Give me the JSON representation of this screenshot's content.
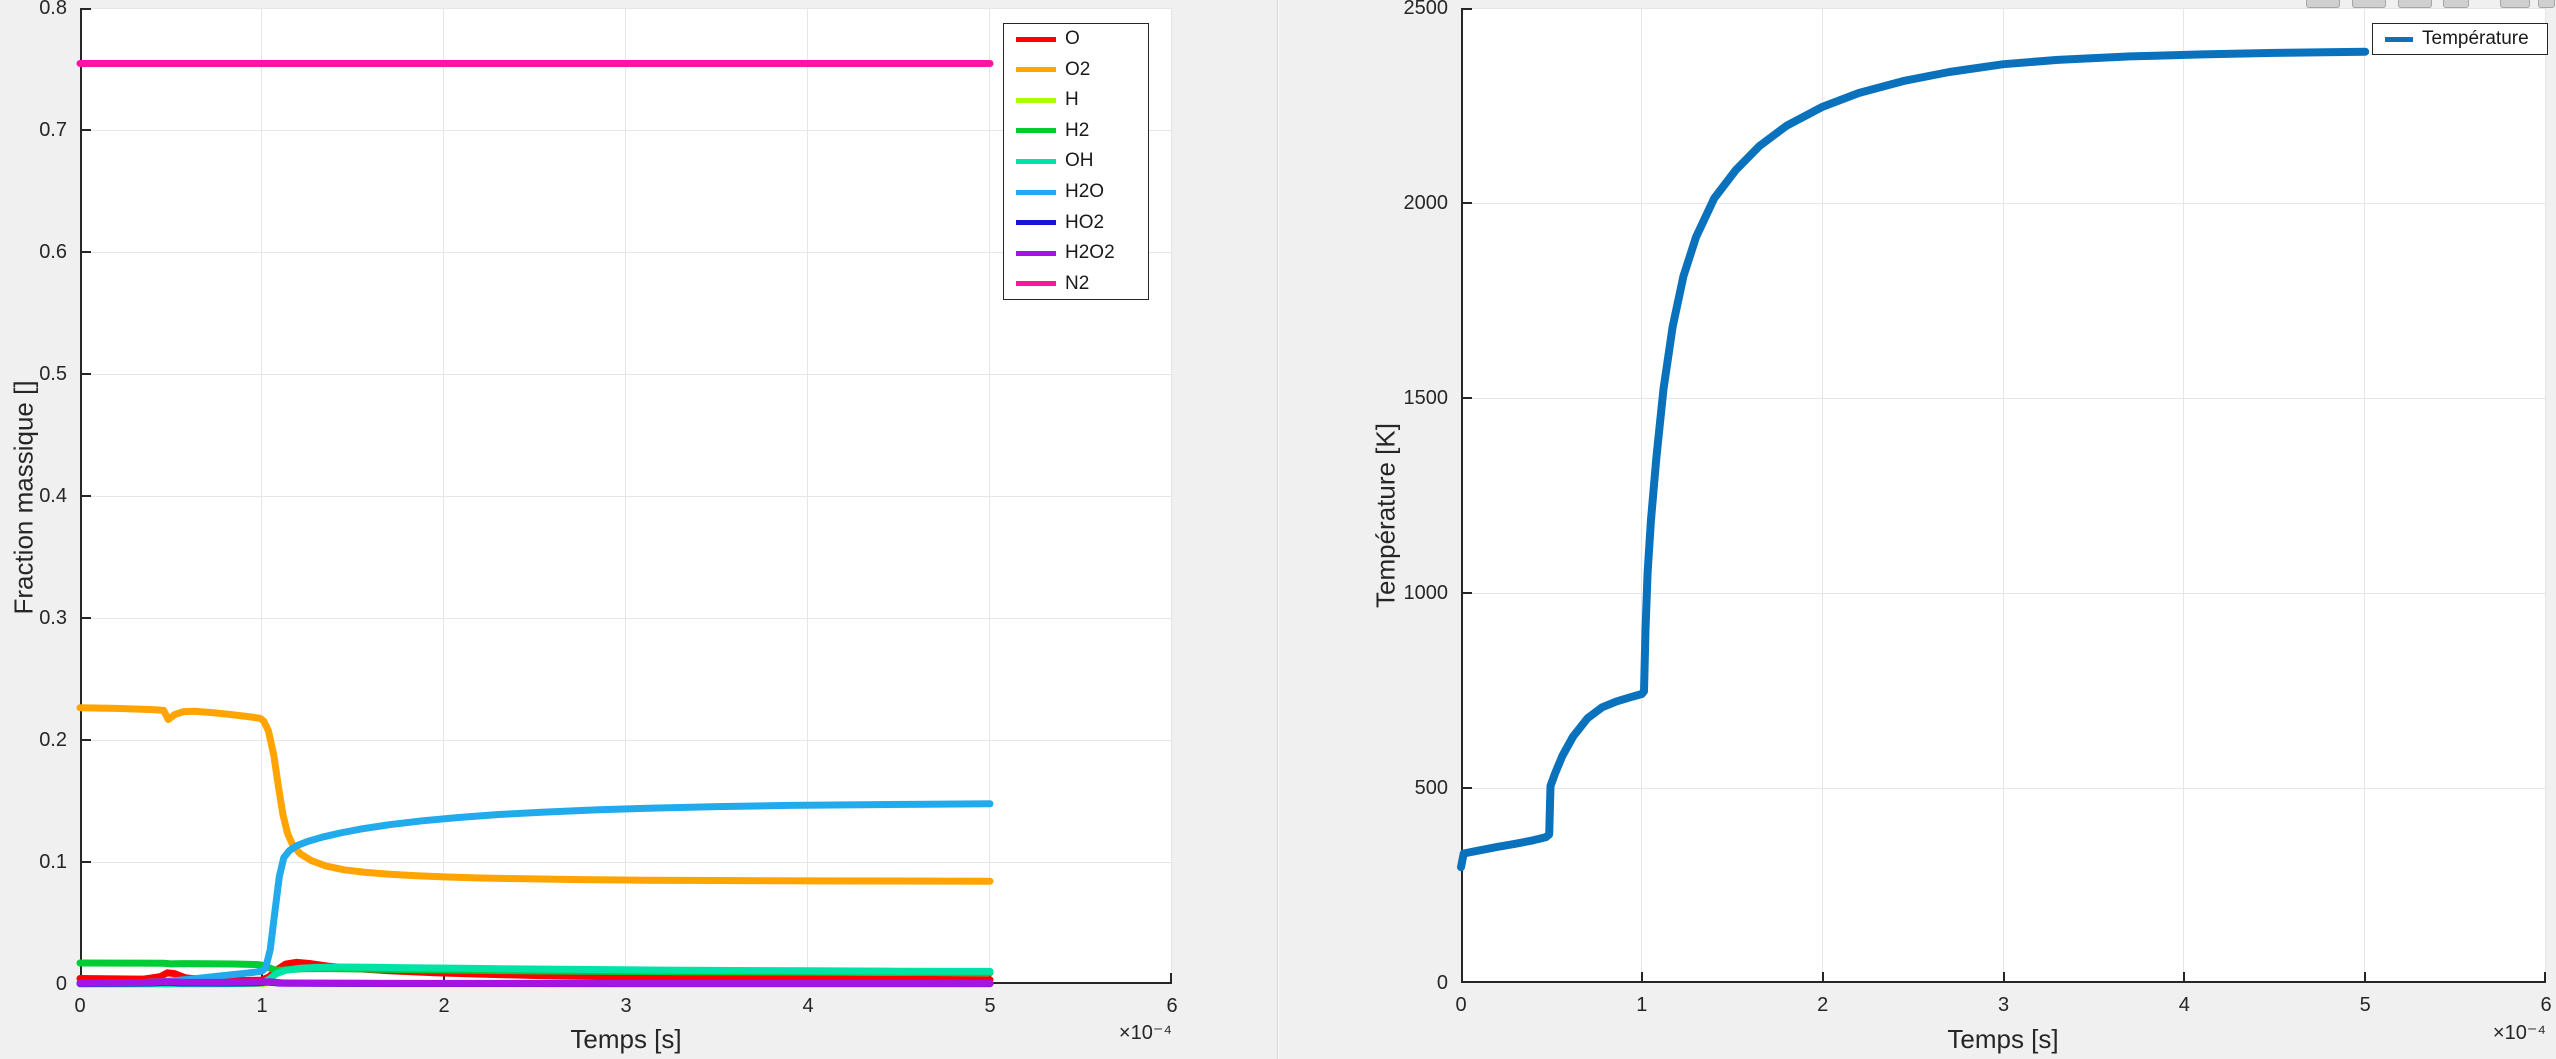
{
  "figure": {
    "background": "#f0f0f0",
    "plot_background": "#ffffff",
    "axis_color": "#262626",
    "grid_color": "#e6e6e6",
    "legend_border_color": "#262626"
  },
  "toolbar": {
    "icons": [
      "save-icon",
      "brush-icon",
      "datatip-icon",
      "pan-icon",
      "zoom-in-icon",
      "zoom-out-icon"
    ]
  },
  "chart_data": [
    {
      "type": "line",
      "title": "",
      "xlabel": "Temps [s]",
      "ylabel": "Fraction massique []",
      "x_scale_label": "×10⁻⁴",
      "x_points_unit": "×10⁻⁴ s",
      "xlim": [
        0,
        6
      ],
      "ylim": [
        0,
        0.8
      ],
      "x_ticks": [
        "0",
        "1",
        "2",
        "3",
        "4",
        "5",
        "6"
      ],
      "y_ticks": [
        "0",
        "0.1",
        "0.2",
        "0.3",
        "0.4",
        "0.5",
        "0.6",
        "0.7",
        "0.8"
      ],
      "grid": true,
      "legend_position": "top-right-inside",
      "series": [
        {
          "name": "O",
          "color": "#ff0000",
          "points": [
            [
              0,
              0.0045
            ],
            [
              0.2,
              0.0042
            ],
            [
              0.35,
              0.004
            ],
            [
              0.44,
              0.006
            ],
            [
              0.48,
              0.0092
            ],
            [
              0.52,
              0.0085
            ],
            [
              0.58,
              0.005
            ],
            [
              0.68,
              0.0036
            ],
            [
              0.8,
              0.0031
            ],
            [
              0.92,
              0.0029
            ],
            [
              1.0,
              0.0032
            ],
            [
              1.04,
              0.006
            ],
            [
              1.08,
              0.0115
            ],
            [
              1.13,
              0.0163
            ],
            [
              1.19,
              0.0178
            ],
            [
              1.26,
              0.0168
            ],
            [
              1.36,
              0.0147
            ],
            [
              1.5,
              0.0127
            ],
            [
              1.7,
              0.0109
            ],
            [
              1.95,
              0.0093
            ],
            [
              2.2,
              0.0081
            ],
            [
              2.5,
              0.007
            ],
            [
              2.8,
              0.0062
            ],
            [
              3.1,
              0.0056
            ],
            [
              3.5,
              0.0049
            ],
            [
              3.9,
              0.0044
            ],
            [
              4.3,
              0.004
            ],
            [
              4.7,
              0.0037
            ],
            [
              5,
              0.0035
            ]
          ]
        },
        {
          "name": "O2",
          "color": "#ffa400",
          "points": [
            [
              0,
              0.2265
            ],
            [
              0.2,
              0.2259
            ],
            [
              0.4,
              0.2249
            ],
            [
              0.46,
              0.2243
            ],
            [
              0.485,
              0.2168
            ],
            [
              0.52,
              0.2208
            ],
            [
              0.57,
              0.2233
            ],
            [
              0.63,
              0.2236
            ],
            [
              0.72,
              0.2225
            ],
            [
              0.82,
              0.221
            ],
            [
              0.92,
              0.2193
            ],
            [
              0.99,
              0.2178
            ],
            [
              1.01,
              0.2155
            ],
            [
              1.035,
              0.2075
            ],
            [
              1.065,
              0.1875
            ],
            [
              1.09,
              0.162
            ],
            [
              1.115,
              0.139
            ],
            [
              1.14,
              0.1235
            ],
            [
              1.17,
              0.1135
            ],
            [
              1.21,
              0.1068
            ],
            [
              1.27,
              0.1012
            ],
            [
              1.35,
              0.0968
            ],
            [
              1.45,
              0.0936
            ],
            [
              1.57,
              0.0915
            ],
            [
              1.7,
              0.09
            ],
            [
              1.85,
              0.0888
            ],
            [
              2.0,
              0.0878
            ],
            [
              2.2,
              0.0869
            ],
            [
              2.45,
              0.0862
            ],
            [
              2.75,
              0.0856
            ],
            [
              3.1,
              0.0851
            ],
            [
              3.5,
              0.0848
            ],
            [
              4.0,
              0.0845
            ],
            [
              4.5,
              0.0844
            ],
            [
              5,
              0.0843
            ]
          ]
        },
        {
          "name": "H",
          "color": "#a9fe00",
          "points": [
            [
              0,
              0.0001
            ],
            [
              0.9,
              0.0002
            ],
            [
              1.0,
              0.0005
            ],
            [
              1.05,
              0.0013
            ],
            [
              1.12,
              0.0011
            ],
            [
              1.25,
              0.0008
            ],
            [
              1.5,
              0.0006
            ],
            [
              2,
              0.0004
            ],
            [
              3,
              0.0003
            ],
            [
              4,
              0.0003
            ],
            [
              5,
              0.0003
            ]
          ]
        },
        {
          "name": "H2",
          "color": "#00cc33",
          "points": [
            [
              0,
              0.0172
            ],
            [
              0.3,
              0.0171
            ],
            [
              0.46,
              0.017
            ],
            [
              0.5,
              0.0165
            ],
            [
              0.56,
              0.0167
            ],
            [
              0.7,
              0.0166
            ],
            [
              0.85,
              0.0164
            ],
            [
              0.97,
              0.016
            ],
            [
              1.01,
              0.0152
            ],
            [
              1.04,
              0.0133
            ],
            [
              1.07,
              0.0115
            ],
            [
              1.1,
              0.0112
            ],
            [
              1.15,
              0.0118
            ],
            [
              1.22,
              0.0125
            ],
            [
              1.32,
              0.0127
            ],
            [
              1.5,
              0.0124
            ],
            [
              1.75,
              0.0119
            ],
            [
              2.0,
              0.0115
            ],
            [
              2.4,
              0.0109
            ],
            [
              2.8,
              0.0105
            ],
            [
              3.3,
              0.0101
            ],
            [
              3.8,
              0.0098
            ],
            [
              4.4,
              0.0095
            ],
            [
              5,
              0.0093
            ]
          ]
        },
        {
          "name": "OH",
          "color": "#00e3a6",
          "points": [
            [
              0,
              0.0002
            ],
            [
              0.8,
              0.0003
            ],
            [
              0.95,
              0.0006
            ],
            [
              1.01,
              0.0012
            ],
            [
              1.04,
              0.004
            ],
            [
              1.08,
              0.0085
            ],
            [
              1.13,
              0.0112
            ],
            [
              1.2,
              0.0128
            ],
            [
              1.3,
              0.0136
            ],
            [
              1.45,
              0.0139
            ],
            [
              1.6,
              0.0138
            ],
            [
              1.8,
              0.0134
            ],
            [
              2.1,
              0.0129
            ],
            [
              2.4,
              0.0124
            ],
            [
              2.8,
              0.0119
            ],
            [
              3.2,
              0.0114
            ],
            [
              3.6,
              0.0111
            ],
            [
              4.0,
              0.0108
            ],
            [
              4.5,
              0.0105
            ],
            [
              5,
              0.0103
            ]
          ]
        },
        {
          "name": "H2O",
          "color": "#21aaec",
          "points": [
            [
              0,
              0.0003
            ],
            [
              0.2,
              0.0006
            ],
            [
              0.35,
              0.0012
            ],
            [
              0.45,
              0.0018
            ],
            [
              0.5,
              0.0025
            ],
            [
              0.58,
              0.0036
            ],
            [
              0.68,
              0.0052
            ],
            [
              0.78,
              0.0068
            ],
            [
              0.88,
              0.0084
            ],
            [
              0.96,
              0.0097
            ],
            [
              1.0,
              0.0106
            ],
            [
              1.02,
              0.013
            ],
            [
              1.045,
              0.028
            ],
            [
              1.07,
              0.058
            ],
            [
              1.095,
              0.088
            ],
            [
              1.12,
              0.1035
            ],
            [
              1.15,
              0.1093
            ],
            [
              1.19,
              0.1133
            ],
            [
              1.25,
              0.1168
            ],
            [
              1.33,
              0.1203
            ],
            [
              1.43,
              0.1238
            ],
            [
              1.55,
              0.1272
            ],
            [
              1.7,
              0.1306
            ],
            [
              1.88,
              0.1338
            ],
            [
              2.08,
              0.1365
            ],
            [
              2.3,
              0.1389
            ],
            [
              2.55,
              0.1409
            ],
            [
              2.85,
              0.1428
            ],
            [
              3.15,
              0.1442
            ],
            [
              3.5,
              0.1454
            ],
            [
              3.9,
              0.1464
            ],
            [
              4.3,
              0.147
            ],
            [
              4.65,
              0.1474
            ],
            [
              5,
              0.1477
            ]
          ]
        },
        {
          "name": "HO2",
          "color": "#1414dd",
          "points": [
            [
              0,
              0.0005
            ],
            [
              0.4,
              0.0009
            ],
            [
              0.48,
              0.0014
            ],
            [
              0.55,
              0.0009
            ],
            [
              0.8,
              0.0008
            ],
            [
              0.98,
              0.0011
            ],
            [
              1.03,
              0.0016
            ],
            [
              1.1,
              0.0007
            ],
            [
              1.4,
              0.0005
            ],
            [
              2,
              0.0004
            ],
            [
              3,
              0.0003
            ],
            [
              5,
              0.0003
            ]
          ]
        },
        {
          "name": "H2O2",
          "color": "#a614e4",
          "points": [
            [
              0,
              0.0008
            ],
            [
              0.4,
              0.0013
            ],
            [
              0.48,
              0.0019
            ],
            [
              0.56,
              0.0014
            ],
            [
              0.8,
              0.0013
            ],
            [
              0.98,
              0.0016
            ],
            [
              1.04,
              0.0019
            ],
            [
              1.12,
              0.0007
            ],
            [
              1.5,
              0.0006
            ],
            [
              2.5,
              0.0005
            ],
            [
              5,
              0.0005
            ]
          ]
        },
        {
          "name": "N2",
          "color": "#ff12a6",
          "points": [
            [
              0,
              0.7545
            ],
            [
              5,
              0.7545
            ]
          ]
        }
      ]
    },
    {
      "type": "line",
      "title": "",
      "xlabel": "Temps [s]",
      "ylabel": "Température [K]",
      "x_scale_label": "×10⁻⁴",
      "x_points_unit": "×10⁻⁴ s",
      "xlim": [
        0,
        6
      ],
      "ylim": [
        0,
        2500
      ],
      "x_ticks": [
        "0",
        "1",
        "2",
        "3",
        "4",
        "5",
        "6"
      ],
      "y_ticks": [
        "0",
        "500",
        "1000",
        "1500",
        "2000",
        "2500"
      ],
      "grid": true,
      "legend_position": "top-right-inside",
      "series": [
        {
          "name": "Température",
          "color": "#0a72bd",
          "points": [
            [
              0,
              297
            ],
            [
              0.015,
              332
            ],
            [
              0.1,
              340
            ],
            [
              0.2,
              349
            ],
            [
              0.3,
              357
            ],
            [
              0.4,
              366
            ],
            [
              0.47,
              374
            ],
            [
              0.488,
              381
            ],
            [
              0.495,
              505
            ],
            [
              0.52,
              537
            ],
            [
              0.56,
              582
            ],
            [
              0.62,
              632
            ],
            [
              0.7,
              679
            ],
            [
              0.78,
              707
            ],
            [
              0.86,
              722
            ],
            [
              0.94,
              733
            ],
            [
              1.0,
              741
            ],
            [
              1.012,
              748
            ],
            [
              1.02,
              905
            ],
            [
              1.032,
              1052
            ],
            [
              1.05,
              1185
            ],
            [
              1.08,
              1345
            ],
            [
              1.12,
              1523
            ],
            [
              1.17,
              1682
            ],
            [
              1.23,
              1812
            ],
            [
              1.3,
              1913
            ],
            [
              1.4,
              2012
            ],
            [
              1.52,
              2085
            ],
            [
              1.65,
              2146
            ],
            [
              1.8,
              2198
            ],
            [
              2.0,
              2247
            ],
            [
              2.2,
              2282
            ],
            [
              2.45,
              2313
            ],
            [
              2.7,
              2336
            ],
            [
              3.0,
              2356
            ],
            [
              3.3,
              2367
            ],
            [
              3.7,
              2376
            ],
            [
              4.1,
              2381
            ],
            [
              4.5,
              2385
            ],
            [
              5,
              2388
            ]
          ]
        }
      ]
    }
  ]
}
